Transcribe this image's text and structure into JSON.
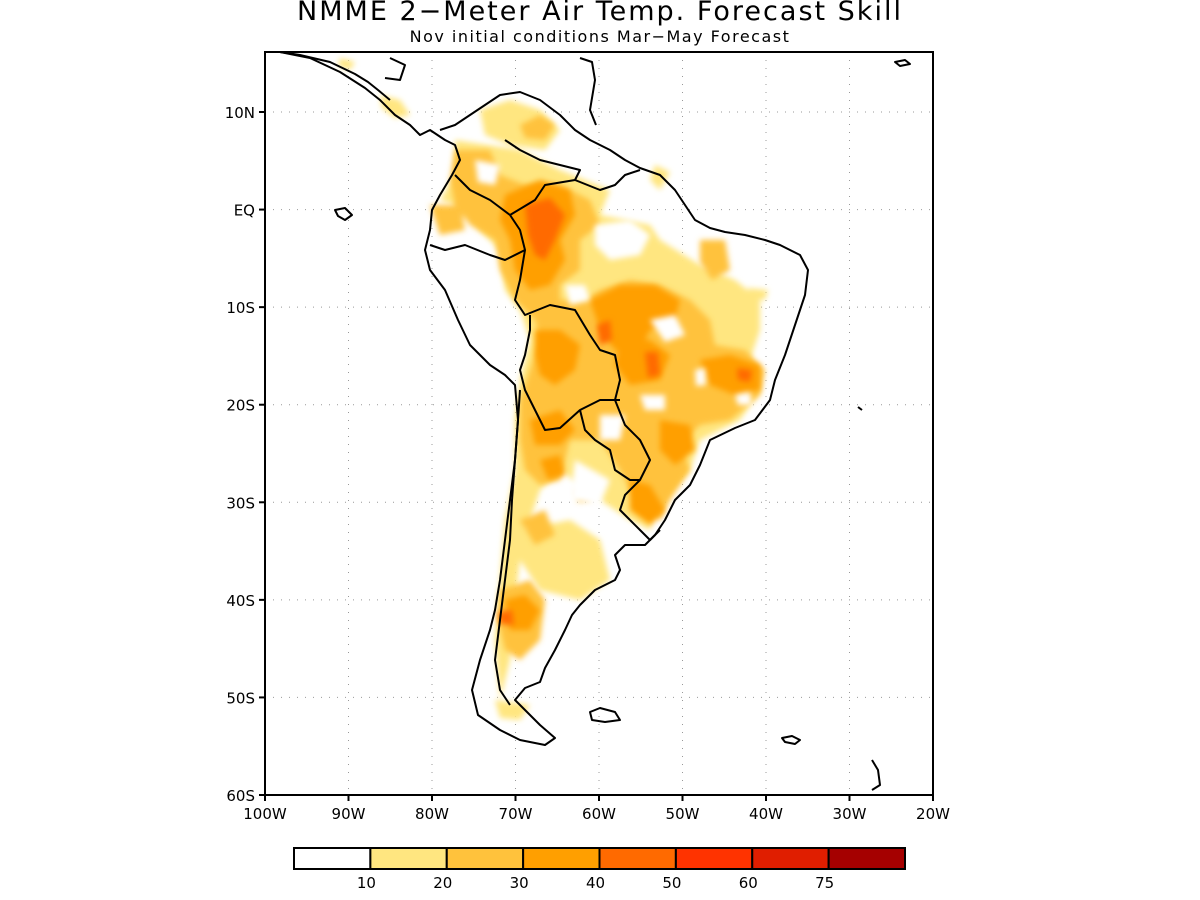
{
  "title": "NMME 2−Meter Air Temp. Forecast Skill",
  "subtitle": "Nov initial conditions  Mar−May Forecast",
  "map": {
    "region": "South America",
    "lon_range": [
      -100,
      -20
    ],
    "lat_range": [
      -60,
      6
    ],
    "gridlines": "dotted",
    "lat_ticks": [
      {
        "lat": 10,
        "label": "10N"
      },
      {
        "lat": 0,
        "label": "EQ"
      },
      {
        "lat": -10,
        "label": "10S"
      },
      {
        "lat": -20,
        "label": "20S"
      },
      {
        "lat": -30,
        "label": "30S"
      },
      {
        "lat": -40,
        "label": "40S"
      },
      {
        "lat": -50,
        "label": "50S"
      },
      {
        "lat": -60,
        "label": "60S"
      }
    ],
    "lon_ticks": [
      {
        "lon": -100,
        "label": "100W"
      },
      {
        "lon": -90,
        "label": "90W"
      },
      {
        "lon": -80,
        "label": "80W"
      },
      {
        "lon": -70,
        "label": "70W"
      },
      {
        "lon": -60,
        "label": "60W"
      },
      {
        "lon": -50,
        "label": "50W"
      },
      {
        "lon": -40,
        "label": "40W"
      },
      {
        "lon": -30,
        "label": "30W"
      },
      {
        "lon": -20,
        "label": "20W"
      }
    ],
    "colorbar": {
      "colors": [
        "#ffffff",
        "#ffe680",
        "#ffc23c",
        "#ff9f00",
        "#ff6a00",
        "#ff3300",
        "#e01e00",
        "#a50000"
      ],
      "labels": [
        "10",
        "20",
        "30",
        "40",
        "50",
        "60",
        "75"
      ]
    }
  }
}
